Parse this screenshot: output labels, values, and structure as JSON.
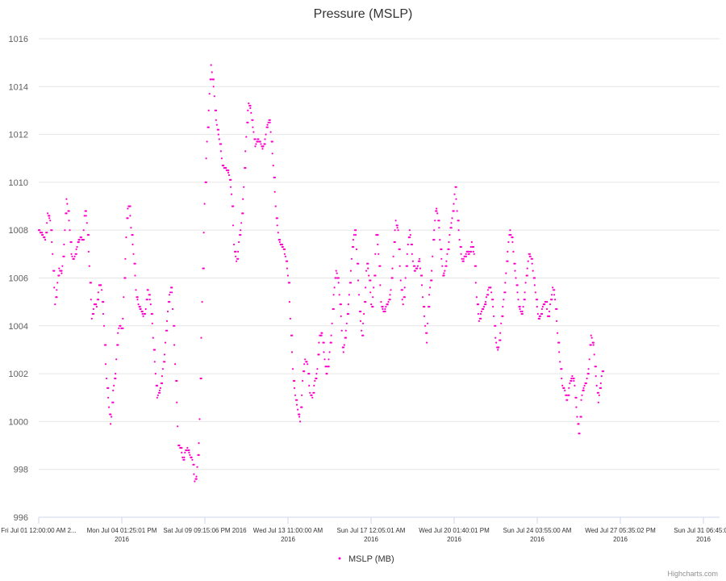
{
  "chart_data": {
    "type": "scatter",
    "title": "Pressure (MSLP)",
    "xlabel": "",
    "ylabel": "",
    "ylim": [
      996,
      1016
    ],
    "y_ticks": [
      "996",
      "998",
      "1000",
      "1002",
      "1004",
      "1006",
      "1008",
      "1010",
      "1012",
      "1014",
      "1016"
    ],
    "x_ticks": [
      {
        "l1": "Fri Jul 01 12:00:00 AM 2...",
        "l2": ""
      },
      {
        "l1": "Mon Jul 04 01:25:01 PM",
        "l2": "2016"
      },
      {
        "l1": "Sat Jul 09 09:15:06 PM 2016",
        "l2": ""
      },
      {
        "l1": "Wed Jul 13 11:00:00 AM",
        "l2": "2016"
      },
      {
        "l1": "Sun Jul 17 12:05:01 AM",
        "l2": "2016"
      },
      {
        "l1": "Wed Jul 20 01:40:01 PM",
        "l2": "2016"
      },
      {
        "l1": "Sun Jul 24 03:55:00 AM",
        "l2": "2016"
      },
      {
        "l1": "Wed Jul 27 05:35:02 PM",
        "l2": "2016"
      },
      {
        "l1": "Sun Jul 31 06:45:0...",
        "l2": "2016"
      }
    ],
    "grid": true,
    "legend_position": "bottom-center",
    "series": [
      {
        "name": "MSLP (MB)",
        "color": "#ff00cc",
        "profile": [
          [
            0,
            1008.0
          ],
          [
            0.01,
            1007.6
          ],
          [
            0.013,
            1008.7
          ],
          [
            0.017,
            1008.4
          ],
          [
            0.02,
            1007.2
          ],
          [
            0.024,
            1004.9
          ],
          [
            0.027,
            1005.6
          ],
          [
            0.03,
            1006.4
          ],
          [
            0.034,
            1006.2
          ],
          [
            0.037,
            1007.3
          ],
          [
            0.041,
            1009.4
          ],
          [
            0.044,
            1008.6
          ],
          [
            0.048,
            1007.0
          ],
          [
            0.051,
            1006.7
          ],
          [
            0.058,
            1007.5
          ],
          [
            0.061,
            1007.7
          ],
          [
            0.065,
            1007.6
          ],
          [
            0.068,
            1008.9
          ],
          [
            0.071,
            1008.3
          ],
          [
            0.075,
            1006.2
          ],
          [
            0.078,
            1004.3
          ],
          [
            0.082,
            1005.0
          ],
          [
            0.085,
            1004.8
          ],
          [
            0.089,
            1005.7
          ],
          [
            0.092,
            1005.7
          ],
          [
            0.096,
            1004.0
          ],
          [
            0.099,
            1002.0
          ],
          [
            0.102,
            1001.0
          ],
          [
            0.106,
            999.8
          ],
          [
            0.109,
            1001.3
          ],
          [
            0.113,
            1002.0
          ],
          [
            0.116,
            1003.7
          ],
          [
            0.119,
            1004.0
          ],
          [
            0.123,
            1003.9
          ],
          [
            0.13,
            1008.8
          ],
          [
            0.133,
            1009.1
          ],
          [
            0.136,
            1008.0
          ],
          [
            0.14,
            1006.8
          ],
          [
            0.143,
            1005.4
          ],
          [
            0.147,
            1004.8
          ],
          [
            0.15,
            1004.7
          ],
          [
            0.154,
            1004.4
          ],
          [
            0.157,
            1004.6
          ],
          [
            0.16,
            1005.6
          ],
          [
            0.164,
            1005.0
          ],
          [
            0.167,
            1004.0
          ],
          [
            0.171,
            1002.2
          ],
          [
            0.174,
            1001.0
          ],
          [
            0.178,
            1001.3
          ],
          [
            0.181,
            1001.8
          ],
          [
            0.185,
            1002.9
          ],
          [
            0.188,
            1004.1
          ],
          [
            0.191,
            1005.1
          ],
          [
            0.195,
            1005.7
          ],
          [
            0.198,
            1004.0
          ],
          [
            0.202,
            1001.4
          ],
          [
            0.205,
            999.0
          ],
          [
            0.209,
            998.9
          ],
          [
            0.212,
            998.3
          ],
          [
            0.215,
            998.7
          ],
          [
            0.219,
            998.9
          ],
          [
            0.222,
            998.6
          ],
          [
            0.226,
            998.4
          ],
          [
            0.229,
            997.5
          ],
          [
            0.232,
            997.7
          ],
          [
            0.236,
            999.5
          ],
          [
            0.239,
            1003.8
          ],
          [
            0.243,
            1008.6
          ],
          [
            0.246,
            1011.0
          ],
          [
            0.25,
            1013.2
          ],
          [
            0.253,
            1014.9
          ],
          [
            0.257,
            1014.0
          ],
          [
            0.26,
            1012.7
          ],
          [
            0.263,
            1012.2
          ],
          [
            0.267,
            1011.5
          ],
          [
            0.27,
            1010.7
          ],
          [
            0.274,
            1010.6
          ],
          [
            0.277,
            1010.5
          ],
          [
            0.28,
            1010.3
          ],
          [
            0.284,
            1009.3
          ],
          [
            0.287,
            1007.3
          ],
          [
            0.291,
            1006.6
          ],
          [
            0.294,
            1007.5
          ],
          [
            0.298,
            1008.4
          ],
          [
            0.301,
            1009.7
          ],
          [
            0.304,
            1011.6
          ],
          [
            0.308,
            1013.3
          ],
          [
            0.311,
            1013.1
          ],
          [
            0.315,
            1012.2
          ],
          [
            0.318,
            1011.5
          ],
          [
            0.322,
            1011.8
          ],
          [
            0.325,
            1011.7
          ],
          [
            0.329,
            1011.4
          ],
          [
            0.332,
            1011.7
          ],
          [
            0.335,
            1012.3
          ],
          [
            0.339,
            1012.7
          ],
          [
            0.342,
            1011.7
          ],
          [
            0.346,
            1010.0
          ],
          [
            0.349,
            1008.5
          ],
          [
            0.353,
            1007.5
          ],
          [
            0.356,
            1007.4
          ],
          [
            0.36,
            1007.2
          ],
          [
            0.363,
            1006.8
          ],
          [
            0.367,
            1005.9
          ],
          [
            0.37,
            1004.0
          ],
          [
            0.374,
            1001.8
          ],
          [
            0.377,
            1001.1
          ],
          [
            0.381,
            1000.4
          ],
          [
            0.384,
            1000.0
          ],
          [
            0.388,
            1001.9
          ],
          [
            0.391,
            1002.6
          ],
          [
            0.395,
            1002.4
          ],
          [
            0.398,
            1001.2
          ],
          [
            0.402,
            1001.0
          ],
          [
            0.405,
            1001.6
          ],
          [
            0.409,
            1002.1
          ],
          [
            0.412,
            1003.5
          ],
          [
            0.416,
            1003.8
          ],
          [
            0.419,
            1002.8
          ],
          [
            0.423,
            1001.8
          ],
          [
            0.426,
            1002.6
          ],
          [
            0.43,
            1003.7
          ],
          [
            0.433,
            1005.2
          ],
          [
            0.437,
            1006.4
          ],
          [
            0.44,
            1005.9
          ],
          [
            0.444,
            1004.4
          ],
          [
            0.447,
            1002.8
          ],
          [
            0.451,
            1003.7
          ],
          [
            0.454,
            1004.6
          ],
          [
            0.458,
            1006.1
          ],
          [
            0.461,
            1007.4
          ],
          [
            0.465,
            1008.1
          ],
          [
            0.468,
            1006.6
          ],
          [
            0.472,
            1004.4
          ],
          [
            0.475,
            1003.5
          ],
          [
            0.479,
            1005.1
          ],
          [
            0.482,
            1006.7
          ],
          [
            0.486,
            1005.9
          ],
          [
            0.489,
            1004.6
          ],
          [
            0.493,
            1006.0
          ],
          [
            0.496,
            1008.1
          ],
          [
            0.5,
            1006.7
          ],
          [
            0.503,
            1004.9
          ],
          [
            0.507,
            1004.6
          ],
          [
            0.51,
            1004.8
          ],
          [
            0.514,
            1005.0
          ],
          [
            0.517,
            1005.4
          ],
          [
            0.521,
            1007.0
          ],
          [
            0.524,
            1008.4
          ],
          [
            0.528,
            1008.0
          ],
          [
            0.531,
            1006.1
          ],
          [
            0.535,
            1004.8
          ],
          [
            0.538,
            1005.7
          ],
          [
            0.542,
            1007.3
          ],
          [
            0.545,
            1008.1
          ],
          [
            0.549,
            1006.8
          ],
          [
            0.552,
            1006.3
          ],
          [
            0.556,
            1006.4
          ],
          [
            0.559,
            1006.9
          ],
          [
            0.563,
            1005.6
          ],
          [
            0.566,
            1004.5
          ],
          [
            0.57,
            1003.3
          ],
          [
            0.573,
            1005.2
          ],
          [
            0.577,
            1006.2
          ],
          [
            0.58,
            1007.8
          ],
          [
            0.584,
            1009.0
          ],
          [
            0.587,
            1008.4
          ],
          [
            0.591,
            1007.0
          ],
          [
            0.594,
            1006.1
          ],
          [
            0.598,
            1006.5
          ],
          [
            0.601,
            1007.2
          ],
          [
            0.605,
            1008.1
          ],
          [
            0.608,
            1008.7
          ],
          [
            0.612,
            1009.8
          ],
          [
            0.615,
            1008.6
          ],
          [
            0.619,
            1007.3
          ],
          [
            0.622,
            1006.7
          ],
          [
            0.626,
            1006.9
          ],
          [
            0.629,
            1007.1
          ],
          [
            0.633,
            1007.0
          ],
          [
            0.636,
            1007.5
          ],
          [
            0.64,
            1006.9
          ],
          [
            0.643,
            1005.3
          ],
          [
            0.647,
            1004.1
          ],
          [
            0.65,
            1004.6
          ],
          [
            0.654,
            1004.8
          ],
          [
            0.657,
            1005.1
          ],
          [
            0.661,
            1005.6
          ],
          [
            0.664,
            1005.6
          ],
          [
            0.668,
            1004.6
          ],
          [
            0.671,
            1003.4
          ],
          [
            0.675,
            1002.9
          ],
          [
            0.678,
            1003.7
          ],
          [
            0.682,
            1004.9
          ],
          [
            0.685,
            1005.7
          ],
          [
            0.689,
            1007.2
          ],
          [
            0.692,
            1008.0
          ],
          [
            0.696,
            1007.5
          ],
          [
            0.699,
            1006.4
          ],
          [
            0.703,
            1005.5
          ],
          [
            0.706,
            1004.7
          ],
          [
            0.71,
            1004.5
          ],
          [
            0.713,
            1005.1
          ],
          [
            0.717,
            1006.3
          ],
          [
            0.72,
            1007.0
          ],
          [
            0.724,
            1006.8
          ],
          [
            0.727,
            1006.0
          ],
          [
            0.731,
            1005.0
          ],
          [
            0.734,
            1004.3
          ],
          [
            0.738,
            1004.5
          ],
          [
            0.741,
            1004.9
          ],
          [
            0.745,
            1005.0
          ],
          [
            0.748,
            1004.3
          ],
          [
            0.752,
            1005.0
          ],
          [
            0.755,
            1005.6
          ],
          [
            0.759,
            1005.0
          ],
          [
            0.762,
            1003.7
          ],
          [
            0.766,
            1002.4
          ],
          [
            0.769,
            1001.5
          ],
          [
            0.773,
            1001.3
          ],
          [
            0.776,
            1000.8
          ],
          [
            0.78,
            1001.6
          ],
          [
            0.783,
            1001.9
          ],
          [
            0.787,
            1001.6
          ],
          [
            0.79,
            1000.4
          ],
          [
            0.794,
            999.3
          ],
          [
            0.797,
            1001.0
          ],
          [
            0.801,
            1001.5
          ],
          [
            0.804,
            1001.6
          ],
          [
            0.808,
            1002.3
          ],
          [
            0.811,
            1003.6
          ],
          [
            0.815,
            1003.2
          ],
          [
            0.818,
            1002.0
          ],
          [
            0.822,
            1000.8
          ],
          [
            0.825,
            1001.5
          ],
          [
            0.828,
            1002.1
          ]
        ]
      }
    ]
  },
  "legend": {
    "label": "MSLP (MB)"
  },
  "credits": "Highcharts.com"
}
